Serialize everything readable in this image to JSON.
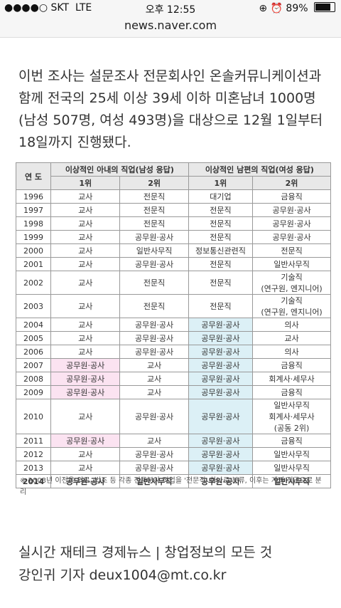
{
  "status_bar": {
    "carrier": "●●●●○ SKT",
    "network": "LTE",
    "time": "오후 12:55",
    "battery_percent": "89%",
    "battery_level": 0.89
  },
  "browser": {
    "url": "news.naver.com"
  },
  "article": {
    "paragraph": "이번 조사는 설문조사 전문회사인 온솔커뮤니케이션과 함께 전국의 25세 이상 39세 이하 미혼남녀 1000명(남성 507명, 여성 493명)을 대상으로 12월 1일부터 18일까지 진행됐다."
  },
  "table": {
    "year_header": "연 도",
    "group_wife": "이상적인 아내의 직업(남성 응답)",
    "group_husband": "이상적인 남편의 직업(여성 응답)",
    "rank1": "1위",
    "rank2": "2위",
    "rows": [
      {
        "year": "1996",
        "w1": "교사",
        "w2": "전문직",
        "h1": "대기업",
        "h2": "금융직"
      },
      {
        "year": "1997",
        "w1": "교사",
        "w2": "전문직",
        "h1": "전문직",
        "h2": "공무원·공사"
      },
      {
        "year": "1998",
        "w1": "교사",
        "w2": "전문직",
        "h1": "전문직",
        "h2": "공무원·공사"
      },
      {
        "year": "1999",
        "w1": "교사",
        "w2": "공무원·공사",
        "h1": "전문직",
        "h2": "공무원·공사"
      },
      {
        "year": "2000",
        "w1": "교사",
        "w2": "일반사무직",
        "h1": "정보통신관련직",
        "h2": "전문직"
      },
      {
        "year": "2001",
        "w1": "교사",
        "w2": "공무원·공사",
        "h1": "전문직",
        "h2": "일반사무직"
      },
      {
        "year": "2002",
        "w1": "교사",
        "w2": "전문직",
        "h1": "전문직",
        "h2": "기술직\n(연구원, 엔지니어)"
      },
      {
        "year": "2003",
        "w1": "교사",
        "w2": "전문직",
        "h1": "전문직",
        "h2": "기술직\n(연구원, 엔지니어)"
      },
      {
        "year": "2004",
        "w1": "교사",
        "w2": "공무원·공사",
        "h1": "공무원·공사",
        "h2": "의사"
      },
      {
        "year": "2005",
        "w1": "교사",
        "w2": "공무원·공사",
        "h1": "공무원·공사",
        "h2": "교사"
      },
      {
        "year": "2006",
        "w1": "교사",
        "w2": "공무원·공사",
        "h1": "공무원·공사",
        "h2": "의사"
      },
      {
        "year": "2007",
        "w1": "공무원·공사",
        "w2": "교사",
        "h1": "공무원·공사",
        "h2": "금융직"
      },
      {
        "year": "2008",
        "w1": "공무원·공사",
        "w2": "교사",
        "h1": "공무원·공사",
        "h2": "회계사·세무사"
      },
      {
        "year": "2009",
        "w1": "공무원·공사",
        "w2": "교사",
        "h1": "공무원·공사",
        "h2": "금융직"
      },
      {
        "year": "2010",
        "w1": "교사",
        "w2": "공무원·공사",
        "h1": "공무원·공사",
        "h2": "일반사무직\n회계사·세무사\n(공동 2위)"
      },
      {
        "year": "2011",
        "w1": "공무원·공사",
        "w2": "교사",
        "h1": "공무원·공사",
        "h2": "금융직"
      },
      {
        "year": "2012",
        "w1": "교사",
        "w2": "공무원·공사",
        "h1": "공무원·공사",
        "h2": "일반사무직"
      },
      {
        "year": "2013",
        "w1": "교사",
        "w2": "공무원·공사",
        "h1": "공무원·공사",
        "h2": "일반사무직"
      },
      {
        "year": "2014",
        "w1": "공무원·공사",
        "w2": "일반사무직",
        "h1": "공무원·공사",
        "h2": "일반사무직"
      }
    ],
    "footnote": "※ 2003년 이전은 의료, 법조 등 각종 전문분야 직업을 '전문직' 하나로 분류, 이후는 개별 직군으로 분리"
  },
  "footer": {
    "line1": "실시간 재테크 경제뉴스 | 창업정보의 모든 것",
    "reporter": "강인귀 기자 deux1004@mt.co.kr"
  }
}
